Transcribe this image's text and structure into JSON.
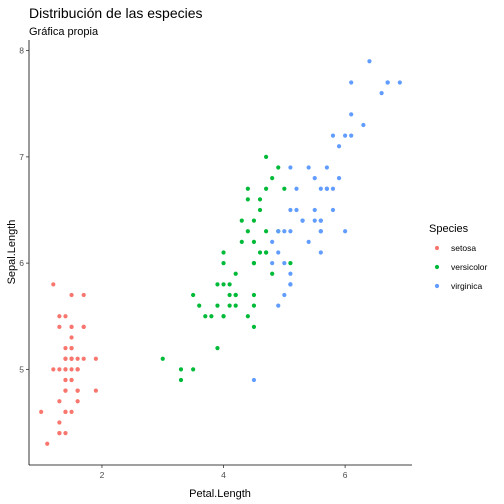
{
  "chart_data": {
    "type": "scatter",
    "title": "Distribución de las especies",
    "subtitle": "Gráfica propia",
    "xlabel": "Petal.Length",
    "ylabel": "Sepal.Length",
    "xlim": [
      0.8,
      7.1
    ],
    "ylim": [
      4.1,
      8.1
    ],
    "x_ticks": [
      2,
      4,
      6
    ],
    "y_ticks": [
      5,
      6,
      7,
      8
    ],
    "grid": false,
    "legend": {
      "title": "Species",
      "placement": "right"
    },
    "series": [
      {
        "name": "setosa",
        "color": "#F8766D",
        "points": [
          [
            1.4,
            5.1
          ],
          [
            1.4,
            4.9
          ],
          [
            1.3,
            4.7
          ],
          [
            1.5,
            4.6
          ],
          [
            1.4,
            5.0
          ],
          [
            1.7,
            5.4
          ],
          [
            1.4,
            4.6
          ],
          [
            1.5,
            5.0
          ],
          [
            1.4,
            4.4
          ],
          [
            1.5,
            4.9
          ],
          [
            1.5,
            5.4
          ],
          [
            1.6,
            4.8
          ],
          [
            1.4,
            4.8
          ],
          [
            1.1,
            4.3
          ],
          [
            1.2,
            5.8
          ],
          [
            1.5,
            5.7
          ],
          [
            1.3,
            5.4
          ],
          [
            1.4,
            5.1
          ],
          [
            1.7,
            5.7
          ],
          [
            1.5,
            5.1
          ],
          [
            1.7,
            5.4
          ],
          [
            1.5,
            5.1
          ],
          [
            1.0,
            4.6
          ],
          [
            1.7,
            5.1
          ],
          [
            1.9,
            4.8
          ],
          [
            1.6,
            5.0
          ],
          [
            1.6,
            5.0
          ],
          [
            1.5,
            5.2
          ],
          [
            1.4,
            5.2
          ],
          [
            1.6,
            4.7
          ],
          [
            1.6,
            4.8
          ],
          [
            1.5,
            5.4
          ],
          [
            1.5,
            5.2
          ],
          [
            1.4,
            5.5
          ],
          [
            1.5,
            4.9
          ],
          [
            1.2,
            5.0
          ],
          [
            1.3,
            5.5
          ],
          [
            1.4,
            4.9
          ],
          [
            1.3,
            4.4
          ],
          [
            1.5,
            5.1
          ],
          [
            1.3,
            5.0
          ],
          [
            1.3,
            4.5
          ],
          [
            1.3,
            4.4
          ],
          [
            1.6,
            5.0
          ],
          [
            1.9,
            5.1
          ],
          [
            1.4,
            4.8
          ],
          [
            1.6,
            5.1
          ],
          [
            1.4,
            4.6
          ],
          [
            1.5,
            5.3
          ],
          [
            1.4,
            5.0
          ]
        ]
      },
      {
        "name": "versicolor",
        "color": "#00BA38",
        "points": [
          [
            4.7,
            7.0
          ],
          [
            4.5,
            6.4
          ],
          [
            4.9,
            6.9
          ],
          [
            4.0,
            5.5
          ],
          [
            4.6,
            6.5
          ],
          [
            4.5,
            5.7
          ],
          [
            4.7,
            6.3
          ],
          [
            3.3,
            4.9
          ],
          [
            4.6,
            6.6
          ],
          [
            3.9,
            5.2
          ],
          [
            3.5,
            5.0
          ],
          [
            4.2,
            5.9
          ],
          [
            4.0,
            6.0
          ],
          [
            4.7,
            6.1
          ],
          [
            3.6,
            5.6
          ],
          [
            4.4,
            6.7
          ],
          [
            4.5,
            5.6
          ],
          [
            4.1,
            5.8
          ],
          [
            4.5,
            6.2
          ],
          [
            3.9,
            5.6
          ],
          [
            4.8,
            5.9
          ],
          [
            4.0,
            6.1
          ],
          [
            4.9,
            6.3
          ],
          [
            4.7,
            6.1
          ],
          [
            4.3,
            6.4
          ],
          [
            4.4,
            6.6
          ],
          [
            4.8,
            6.8
          ],
          [
            5.0,
            6.7
          ],
          [
            4.5,
            6.0
          ],
          [
            3.5,
            5.7
          ],
          [
            3.8,
            5.5
          ],
          [
            3.7,
            5.5
          ],
          [
            3.9,
            5.8
          ],
          [
            5.1,
            6.0
          ],
          [
            4.5,
            5.4
          ],
          [
            4.5,
            6.0
          ],
          [
            4.7,
            6.7
          ],
          [
            4.4,
            6.3
          ],
          [
            4.1,
            5.6
          ],
          [
            4.0,
            5.5
          ],
          [
            4.4,
            5.5
          ],
          [
            4.6,
            6.1
          ],
          [
            4.0,
            5.8
          ],
          [
            3.3,
            5.0
          ],
          [
            4.2,
            5.6
          ],
          [
            4.2,
            5.7
          ],
          [
            4.2,
            5.7
          ],
          [
            4.3,
            6.2
          ],
          [
            3.0,
            5.1
          ],
          [
            4.1,
            5.7
          ]
        ]
      },
      {
        "name": "virginica",
        "color": "#619CFF",
        "points": [
          [
            6.0,
            6.3
          ],
          [
            5.1,
            5.8
          ],
          [
            5.9,
            7.1
          ],
          [
            5.6,
            6.3
          ],
          [
            5.8,
            6.5
          ],
          [
            6.6,
            7.6
          ],
          [
            4.5,
            4.9
          ],
          [
            6.3,
            7.3
          ],
          [
            5.8,
            6.7
          ],
          [
            6.1,
            7.2
          ],
          [
            5.1,
            6.5
          ],
          [
            5.3,
            6.4
          ],
          [
            5.5,
            6.8
          ],
          [
            5.0,
            5.7
          ],
          [
            5.1,
            5.8
          ],
          [
            5.3,
            6.4
          ],
          [
            5.5,
            6.5
          ],
          [
            6.7,
            7.7
          ],
          [
            6.9,
            7.7
          ],
          [
            5.0,
            6.0
          ],
          [
            5.7,
            6.9
          ],
          [
            4.9,
            5.6
          ],
          [
            6.7,
            7.7
          ],
          [
            4.9,
            6.3
          ],
          [
            5.7,
            6.7
          ],
          [
            6.0,
            7.2
          ],
          [
            4.8,
            6.2
          ],
          [
            4.9,
            6.1
          ],
          [
            5.6,
            6.4
          ],
          [
            5.8,
            7.2
          ],
          [
            6.1,
            7.4
          ],
          [
            6.4,
            7.9
          ],
          [
            5.6,
            6.4
          ],
          [
            5.1,
            6.3
          ],
          [
            5.6,
            6.1
          ],
          [
            6.1,
            7.7
          ],
          [
            5.6,
            6.3
          ],
          [
            5.5,
            6.4
          ],
          [
            4.8,
            6.0
          ],
          [
            5.4,
            6.9
          ],
          [
            5.6,
            6.7
          ],
          [
            5.1,
            6.9
          ],
          [
            5.1,
            5.8
          ],
          [
            5.9,
            6.8
          ],
          [
            5.7,
            6.7
          ],
          [
            5.2,
            6.7
          ],
          [
            5.0,
            6.3
          ],
          [
            5.2,
            6.5
          ],
          [
            5.4,
            6.2
          ],
          [
            5.1,
            5.9
          ]
        ]
      }
    ]
  }
}
